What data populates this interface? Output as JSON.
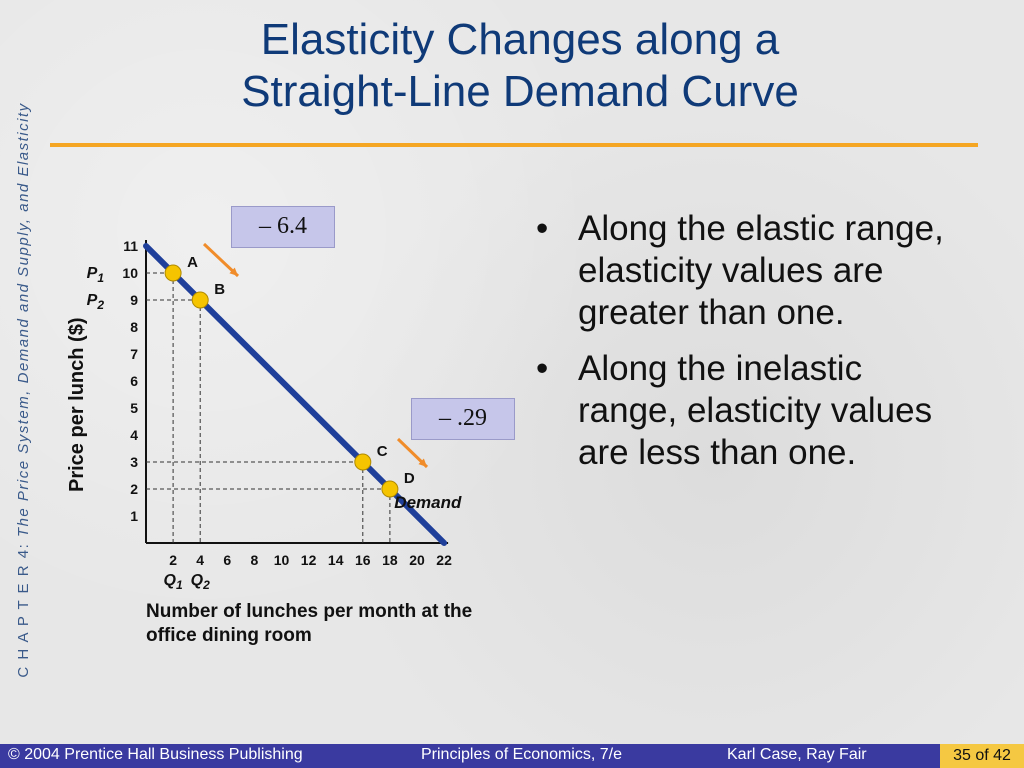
{
  "title_line1": "Elasticity Changes along a",
  "title_line2": "Straight-Line Demand Curve",
  "sidebar": {
    "chapter": "C H A P T E R  4:",
    "subtitle": "The Price System, Demand and Supply, and Elasticity"
  },
  "elastic_box": "– 6.4",
  "inelastic_box": "– .29",
  "bullets": [
    "Along the elastic range, elasticity values are greater than one.",
    "Along the inelastic range, elasticity values are less than one."
  ],
  "footer": {
    "copyright": "© 2004 Prentice Hall Business Publishing",
    "book": "Principles of Economics, 7/e",
    "authors": "Karl Case, Ray Fair",
    "page": "35 of 42"
  },
  "chart_data": {
    "type": "line",
    "title": "",
    "xlabel": "Number of lunches per month at the office dining room",
    "ylabel": "Price per lunch ($)",
    "xlim": [
      0,
      22
    ],
    "ylim": [
      0,
      11
    ],
    "x_ticks": [
      2,
      4,
      6,
      8,
      10,
      12,
      14,
      16,
      18,
      20,
      22
    ],
    "y_ticks": [
      1,
      2,
      3,
      4,
      5,
      6,
      7,
      8,
      9,
      10,
      11
    ],
    "series": [
      {
        "name": "Demand",
        "x": [
          0,
          22
        ],
        "y": [
          11,
          0
        ]
      }
    ],
    "points": [
      {
        "label": "A",
        "x": 2,
        "y": 10
      },
      {
        "label": "B",
        "x": 4,
        "y": 9
      },
      {
        "label": "C",
        "x": 16,
        "y": 3
      },
      {
        "label": "D",
        "x": 18,
        "y": 2
      }
    ],
    "axis_markers": {
      "x": [
        {
          "label": "Q",
          "sub": "1",
          "x": 2
        },
        {
          "label": "Q",
          "sub": "2",
          "x": 4
        }
      ],
      "y": [
        {
          "label": "P",
          "sub": "1",
          "y": 10
        },
        {
          "label": "P",
          "sub": "2",
          "y": 9
        }
      ]
    },
    "line_label": "Demand",
    "colors": {
      "demand": "#1f3f9a",
      "point": "#f5c400",
      "arrow": "#f08c2a"
    }
  }
}
